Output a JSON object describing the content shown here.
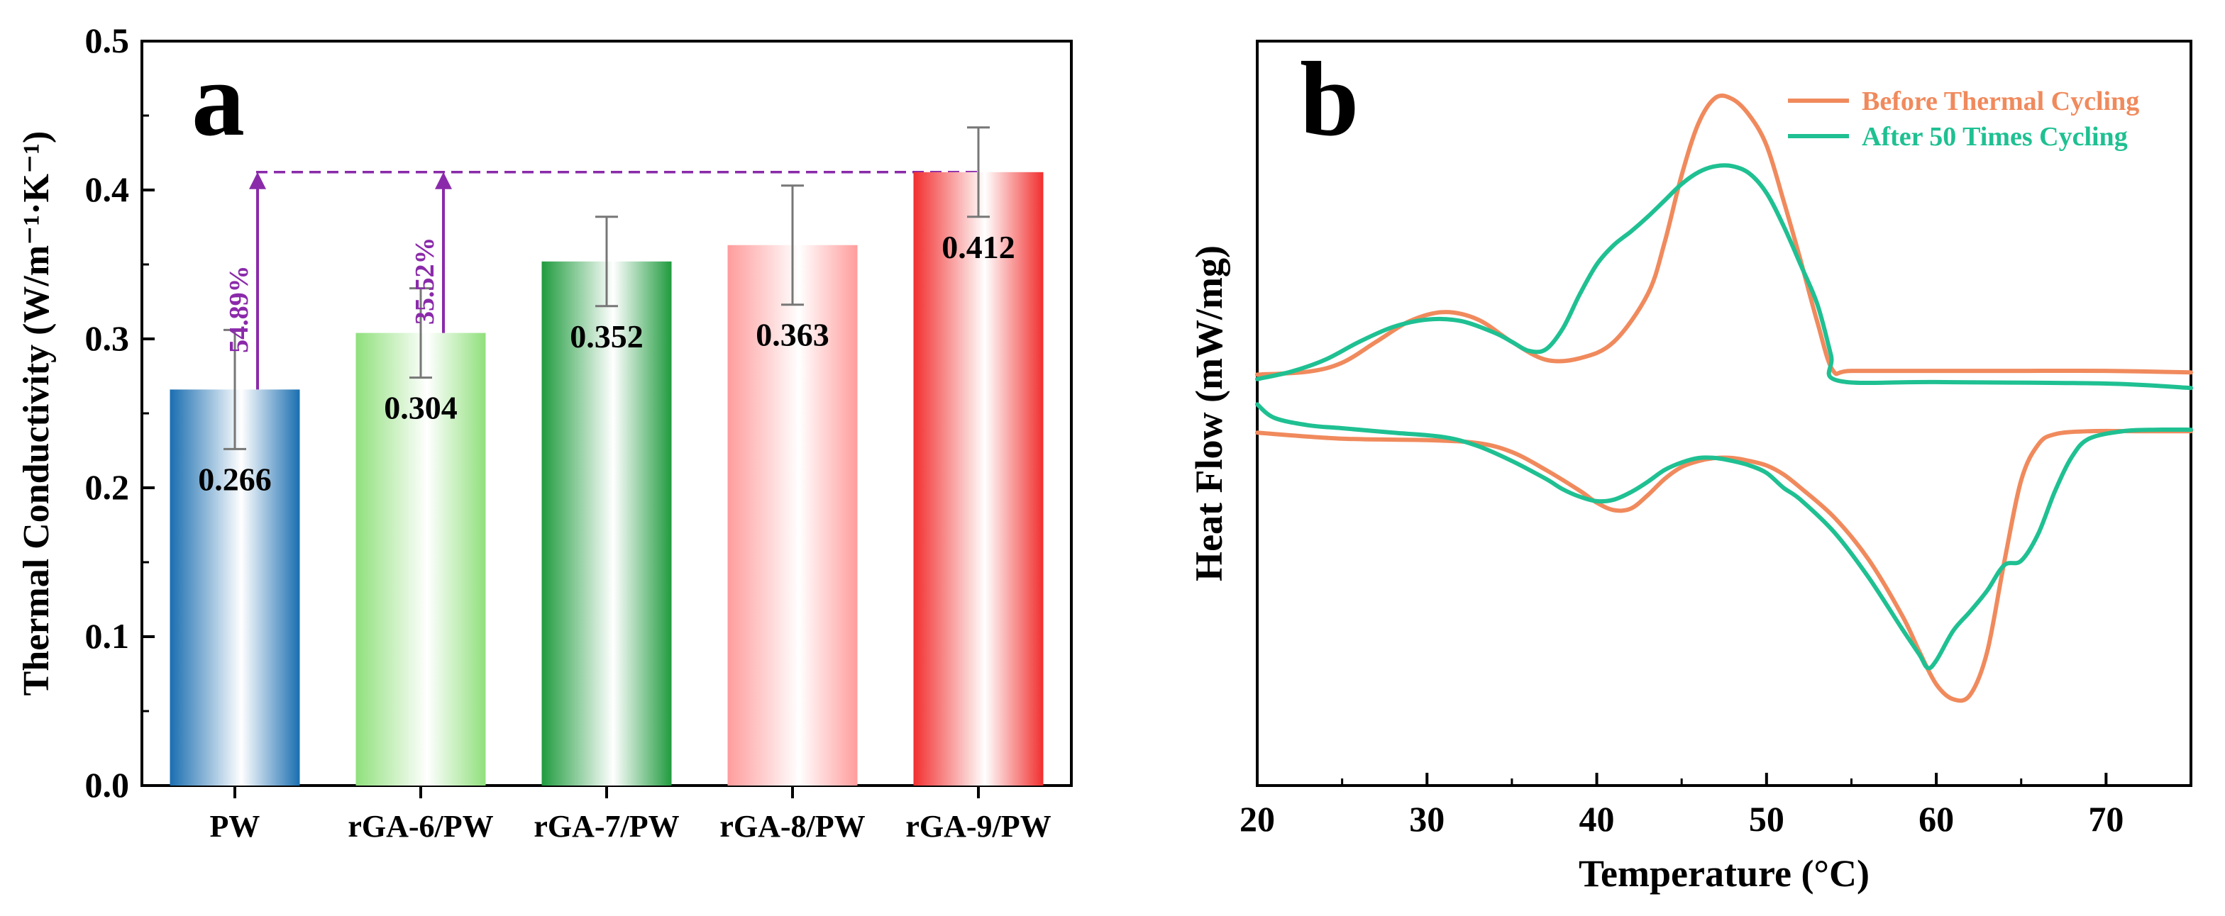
{
  "chart_data": [
    {
      "type": "bar",
      "panel_label": "a",
      "categories": [
        "PW",
        "rGA-6/PW",
        "rGA-7/PW",
        "rGA-8/PW",
        "rGA-9/PW"
      ],
      "values": [
        0.266,
        0.304,
        0.352,
        0.363,
        0.412
      ],
      "value_labels": [
        "0.266",
        "0.304",
        "0.352",
        "0.363",
        "0.412"
      ],
      "errors": [
        0.04,
        0.03,
        0.03,
        0.04,
        0.03
      ],
      "bar_colors": [
        "#1a6eb0",
        "#90e07c",
        "#1f9b3e",
        "#ff9c9c",
        "#f22e2e"
      ],
      "ylabel": "Thermal Conductivity (W/m⁻¹·K⁻¹)",
      "xlabel": "",
      "ylim": [
        0.0,
        0.5
      ],
      "yticks": [
        0.0,
        0.1,
        0.2,
        0.3,
        0.4,
        0.5
      ],
      "ytick_labels": [
        "0.0",
        "0.1",
        "0.2",
        "0.3",
        "0.4",
        "0.5"
      ],
      "reference_line": 0.412,
      "annotations": [
        {
          "text": "54.89%",
          "from_category": "PW",
          "from": 0.266,
          "to": 0.412
        },
        {
          "text": "35.52%",
          "from_category": "rGA-6/PW",
          "from": 0.304,
          "to": 0.412
        }
      ],
      "annotation_color": "#8a2aaa"
    },
    {
      "type": "line",
      "panel_label": "b",
      "xlabel": "Temperature (°C)",
      "ylabel": "Heat Flow (mW/mg)",
      "xlim": [
        20,
        75
      ],
      "xticks": [
        20,
        30,
        40,
        50,
        60,
        70
      ],
      "xtick_labels": [
        "20",
        "30",
        "40",
        "50",
        "60",
        "70"
      ],
      "ylim": [
        0,
        1
      ],
      "y_unlabeled": true,
      "legend_position": "top-right",
      "series": [
        {
          "name": "Before Thermal Cycling",
          "color": "#f08a5d",
          "segments": [
            [
              [
                20,
                0.552
              ],
              [
                23,
                0.556
              ],
              [
                25,
                0.568
              ],
              [
                27,
                0.596
              ],
              [
                29,
                0.624
              ],
              [
                31,
                0.636
              ],
              [
                33,
                0.626
              ],
              [
                35,
                0.596
              ],
              [
                37,
                0.572
              ],
              [
                39,
                0.574
              ],
              [
                41,
                0.596
              ],
              [
                43,
                0.66
              ],
              [
                44,
                0.73
              ],
              [
                45,
                0.82
              ],
              [
                46,
                0.89
              ],
              [
                47,
                0.924
              ],
              [
                48,
                0.922
              ],
              [
                49,
                0.9
              ],
              [
                50,
                0.86
              ],
              [
                51,
                0.786
              ],
              [
                52,
                0.706
              ],
              [
                53,
                0.622
              ],
              [
                53.9,
                0.558
              ],
              [
                55,
                0.557
              ],
              [
                60,
                0.557
              ],
              [
                65,
                0.557
              ],
              [
                70,
                0.557
              ],
              [
                75,
                0.555
              ]
            ],
            [
              [
                20,
                0.474
              ],
              [
                25,
                0.466
              ],
              [
                30,
                0.464
              ],
              [
                33,
                0.46
              ],
              [
                35,
                0.448
              ],
              [
                37,
                0.424
              ],
              [
                39,
                0.396
              ],
              [
                40,
                0.38
              ],
              [
                41,
                0.37
              ],
              [
                42,
                0.372
              ],
              [
                43,
                0.39
              ],
              [
                44,
                0.412
              ],
              [
                45,
                0.428
              ],
              [
                46,
                0.436
              ],
              [
                47,
                0.44
              ],
              [
                48,
                0.44
              ],
              [
                49,
                0.436
              ],
              [
                50,
                0.43
              ],
              [
                51,
                0.418
              ],
              [
                52,
                0.4
              ],
              [
                54,
                0.36
              ],
              [
                56,
                0.304
              ],
              [
                58,
                0.228
              ],
              [
                59,
                0.18
              ],
              [
                60,
                0.136
              ],
              [
                61,
                0.116
              ],
              [
                62,
                0.122
              ],
              [
                63,
                0.18
              ],
              [
                64,
                0.3
              ],
              [
                65,
                0.41
              ],
              [
                66,
                0.458
              ],
              [
                67,
                0.472
              ],
              [
                69,
                0.476
              ],
              [
                72,
                0.476
              ],
              [
                75,
                0.476
              ]
            ]
          ]
        },
        {
          "name": "After 50 Times Cycling",
          "color": "#1fc092",
          "segments": [
            [
              [
                20,
                0.546
              ],
              [
                22,
                0.556
              ],
              [
                24,
                0.572
              ],
              [
                26,
                0.596
              ],
              [
                28,
                0.616
              ],
              [
                30,
                0.626
              ],
              [
                32,
                0.624
              ],
              [
                34,
                0.608
              ],
              [
                35,
                0.596
              ],
              [
                36,
                0.584
              ],
              [
                37,
                0.586
              ],
              [
                38,
                0.614
              ],
              [
                39,
                0.66
              ],
              [
                40,
                0.7
              ],
              [
                41,
                0.726
              ],
              [
                42,
                0.744
              ],
              [
                43,
                0.764
              ],
              [
                44,
                0.786
              ],
              [
                45,
                0.808
              ],
              [
                46,
                0.824
              ],
              [
                47,
                0.832
              ],
              [
                48,
                0.832
              ],
              [
                49,
                0.822
              ],
              [
                50,
                0.796
              ],
              [
                51,
                0.752
              ],
              [
                52,
                0.7
              ],
              [
                53,
                0.646
              ],
              [
                53.8,
                0.578
              ],
              [
                54.2,
                0.544
              ],
              [
                60,
                0.542
              ],
              [
                70,
                0.54
              ],
              [
                75,
                0.534
              ]
            ],
            [
              [
                20,
                0.512
              ],
              [
                21,
                0.494
              ],
              [
                23,
                0.484
              ],
              [
                25,
                0.48
              ],
              [
                28,
                0.474
              ],
              [
                31,
                0.468
              ],
              [
                33,
                0.456
              ],
              [
                35,
                0.436
              ],
              [
                37,
                0.412
              ],
              [
                38,
                0.398
              ],
              [
                39,
                0.388
              ],
              [
                40,
                0.382
              ],
              [
                41,
                0.384
              ],
              [
                42,
                0.394
              ],
              [
                43,
                0.408
              ],
              [
                44,
                0.424
              ],
              [
                45,
                0.434
              ],
              [
                46,
                0.44
              ],
              [
                47,
                0.44
              ],
              [
                48,
                0.436
              ],
              [
                49,
                0.43
              ],
              [
                50,
                0.42
              ],
              [
                51,
                0.4
              ],
              [
                52,
                0.384
              ],
              [
                54,
                0.34
              ],
              [
                56,
                0.28
              ],
              [
                58,
                0.21
              ],
              [
                59,
                0.176
              ],
              [
                59.5,
                0.158
              ],
              [
                60,
                0.168
              ],
              [
                61,
                0.208
              ],
              [
                62,
                0.234
              ],
              [
                63,
                0.262
              ],
              [
                64,
                0.296
              ],
              [
                65,
                0.302
              ],
              [
                66,
                0.338
              ],
              [
                67,
                0.396
              ],
              [
                68,
                0.442
              ],
              [
                69,
                0.466
              ],
              [
                71,
                0.476
              ],
              [
                73,
                0.478
              ],
              [
                75,
                0.478
              ]
            ]
          ]
        }
      ]
    }
  ]
}
